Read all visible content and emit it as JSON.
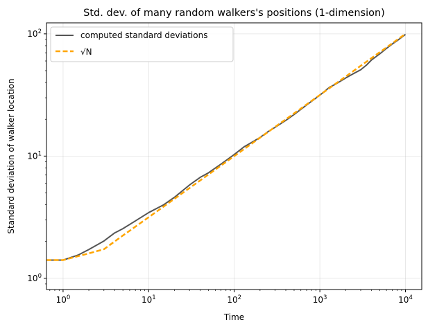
{
  "chart_data": {
    "type": "line",
    "title": "Std. dev. of many random walkers's positions (1-dimension)",
    "xlabel": "Time",
    "ylabel": "Standard deviation of walker location",
    "xscale": "log",
    "yscale": "log",
    "xlim": [
      0.64,
      15500
    ],
    "ylim": [
      0.81,
      123
    ],
    "grid": true,
    "legend_position": "top-left",
    "x_ticks": [
      {
        "base": "10",
        "exp": "0",
        "value": 1
      },
      {
        "base": "10",
        "exp": "1",
        "value": 10
      },
      {
        "base": "10",
        "exp": "2",
        "value": 100
      },
      {
        "base": "10",
        "exp": "3",
        "value": 1000
      },
      {
        "base": "10",
        "exp": "4",
        "value": 10000
      }
    ],
    "y_ticks": [
      {
        "base": "10",
        "exp": "0",
        "value": 1
      },
      {
        "base": "10",
        "exp": "1",
        "value": 10
      },
      {
        "base": "10",
        "exp": "2",
        "value": 100
      }
    ],
    "series": [
      {
        "name": "computed standard deviations",
        "color": "#555555",
        "style": "solid",
        "x": [
          0.64,
          1,
          1.5,
          2,
          3,
          4,
          5,
          7,
          10,
          15,
          20,
          30,
          40,
          50,
          70,
          100,
          130,
          150,
          200,
          250,
          300,
          400,
          500,
          700,
          1000,
          1300,
          1500,
          2000,
          2500,
          3000,
          3500,
          4000,
          5000,
          6000,
          7000,
          8000,
          10000
        ],
        "y": [
          1.41,
          1.41,
          1.55,
          1.72,
          2.02,
          2.35,
          2.55,
          2.95,
          3.45,
          4.0,
          4.6,
          5.8,
          6.7,
          7.3,
          8.6,
          10.3,
          11.9,
          12.6,
          14.2,
          15.9,
          17.2,
          19.6,
          21.9,
          26.2,
          31.5,
          36.6,
          38.5,
          43.5,
          47.5,
          50.8,
          55.5,
          61.0,
          68.5,
          76.0,
          82.5,
          88.0,
          99.0
        ]
      },
      {
        "name": "√N",
        "color": "#ffa500",
        "style": "dashed",
        "x": [
          0.64,
          1,
          2,
          3,
          5,
          10,
          20,
          50,
          100,
          200,
          500,
          1000,
          2000,
          5000,
          10000
        ],
        "y": [
          1.41,
          1.41,
          1.6,
          1.73,
          2.24,
          3.16,
          4.47,
          7.07,
          10.0,
          14.14,
          22.36,
          31.62,
          44.72,
          70.71,
          100.0
        ]
      }
    ]
  }
}
